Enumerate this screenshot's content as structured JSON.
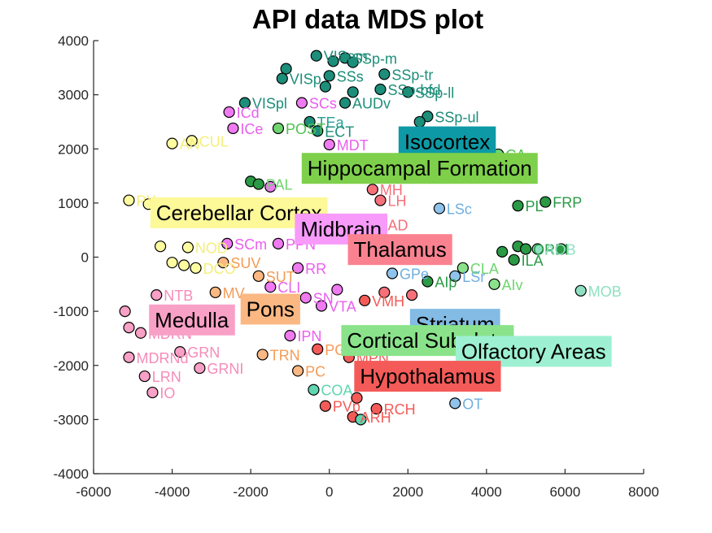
{
  "chart_data": {
    "type": "scatter",
    "title": "API data MDS plot",
    "xlabel": "",
    "ylabel": "",
    "xlim": [
      -6000,
      8000
    ],
    "ylim": [
      -4000,
      4000
    ],
    "xticks": [
      -6000,
      -4000,
      -2000,
      0,
      2000,
      4000,
      6000,
      8000
    ],
    "yticks": [
      -4000,
      -3000,
      -2000,
      -1000,
      0,
      1000,
      2000,
      3000,
      4000
    ],
    "grid": false,
    "groups": [
      {
        "name": "Isocortex",
        "color": "#0d9aa6",
        "lx": 3000,
        "ly": 2130
      },
      {
        "name": "Hippocampal Formation",
        "color": "#7ed04b",
        "lx": 2300,
        "ly": 1640
      },
      {
        "name": "Cerebellar Cortex",
        "color": "#fdf898",
        "lx": -2300,
        "ly": 820
      },
      {
        "name": "Midbrain",
        "color": "#f79afa",
        "lx": 300,
        "ly": 520
      },
      {
        "name": "Thalamus",
        "color": "#fa8290",
        "lx": 1800,
        "ly": 140
      },
      {
        "name": "Striatum",
        "color": "#83bbe4",
        "lx": 3200,
        "ly": -1240
      },
      {
        "name": "Medulla",
        "color": "#f9a0c6",
        "lx": -3500,
        "ly": -1160
      },
      {
        "name": "Pons",
        "color": "#fbb883",
        "lx": -1500,
        "ly": -960
      },
      {
        "name": "Cortical Subplate",
        "color": "#8ae38a",
        "lx": 2500,
        "ly": -1540
      },
      {
        "name": "Olfactory Areas",
        "color": "#9ef0d2",
        "lx": 5200,
        "ly": -1740
      },
      {
        "name": "Hypothalamus",
        "color": "#f45b58",
        "lx": 2500,
        "ly": -2200
      }
    ],
    "points": [
      {
        "x": -330,
        "y": 3720,
        "label": "VISam",
        "color": "#1d8e7a",
        "tcolor": "#1d8e7a"
      },
      {
        "x": 100,
        "y": 3620,
        "label": "",
        "color": "#1d8e7a",
        "tcolor": "#1d8e7a"
      },
      {
        "x": 400,
        "y": 3680,
        "label": "SSp-m",
        "color": "#1d8e7a",
        "tcolor": "#1d8e7a"
      },
      {
        "x": 600,
        "y": 3600,
        "label": "",
        "color": "#1d8e7a",
        "tcolor": "#1d8e7a"
      },
      {
        "x": -1100,
        "y": 3480,
        "label": "",
        "color": "#1d8e7a",
        "tcolor": "#1d8e7a"
      },
      {
        "x": -1200,
        "y": 3300,
        "label": "VISp",
        "color": "#1d8e7a",
        "tcolor": "#1d8e7a"
      },
      {
        "x": 0,
        "y": 3350,
        "label": "SSs",
        "color": "#1d8e7a",
        "tcolor": "#1d8e7a"
      },
      {
        "x": 1400,
        "y": 3380,
        "label": "SSp-tr",
        "color": "#1d8e7a",
        "tcolor": "#1d8e7a"
      },
      {
        "x": -100,
        "y": 3150,
        "label": "",
        "color": "#1d8e7a",
        "tcolor": "#1d8e7a"
      },
      {
        "x": 600,
        "y": 3050,
        "label": "",
        "color": "#1d8e7a",
        "tcolor": "#1d8e7a"
      },
      {
        "x": 1300,
        "y": 3100,
        "label": "SSp-bfd",
        "color": "#1d8e7a",
        "tcolor": "#1d8e7a"
      },
      {
        "x": 2000,
        "y": 3050,
        "label": "SSp-ll",
        "color": "#1d8e7a",
        "tcolor": "#1d8e7a"
      },
      {
        "x": -2150,
        "y": 2850,
        "label": "VISpl",
        "color": "#1d8e7a",
        "tcolor": "#1d8e7a"
      },
      {
        "x": 400,
        "y": 2850,
        "label": "AUDv",
        "color": "#1d8e7a",
        "tcolor": "#1d8e7a"
      },
      {
        "x": 2500,
        "y": 2600,
        "label": "SSp-ul",
        "color": "#1d8e7a",
        "tcolor": "#1d8e7a"
      },
      {
        "x": 2300,
        "y": 2500,
        "label": "",
        "color": "#1d8e7a",
        "tcolor": "#1d8e7a"
      },
      {
        "x": -2550,
        "y": 2680,
        "label": "ICd",
        "color": "#f07af2",
        "tcolor": "#ea5fee"
      },
      {
        "x": -2450,
        "y": 2380,
        "label": "ICe",
        "color": "#f07af2",
        "tcolor": "#ea5fee"
      },
      {
        "x": -700,
        "y": 2850,
        "label": "SCs",
        "color": "#f07af2",
        "tcolor": "#ea5fee"
      },
      {
        "x": -500,
        "y": 2500,
        "label": "TEa",
        "color": "#1d8e7a",
        "tcolor": "#25a095"
      },
      {
        "x": -1300,
        "y": 2380,
        "label": "POST",
        "color": "#6ed56e",
        "tcolor": "#4ec24e"
      },
      {
        "x": -300,
        "y": 2330,
        "label": "ECT",
        "color": "#1d8e7a",
        "tcolor": "#1d8e7a"
      },
      {
        "x": -4000,
        "y": 2100,
        "label": "AN",
        "color": "#fffca0",
        "tcolor": "#f5ee7a"
      },
      {
        "x": -3500,
        "y": 2150,
        "label": "CUL",
        "color": "#fffca0",
        "tcolor": "#f5ee7a"
      },
      {
        "x": 0,
        "y": 2080,
        "label": "MDT",
        "color": "#f07af2",
        "tcolor": "#ea5fee"
      },
      {
        "x": 4300,
        "y": 1900,
        "label": "CA",
        "color": "#6ed56e",
        "tcolor": "#4ec24e"
      },
      {
        "x": -2000,
        "y": 1400,
        "label": "",
        "color": "#2a9a45",
        "tcolor": "#2a9a45"
      },
      {
        "x": -1800,
        "y": 1350,
        "label": "PAL",
        "color": "#2a9a45",
        "tcolor": "#6ed56e"
      },
      {
        "x": -1500,
        "y": 1300,
        "label": "",
        "color": "#f07af2",
        "tcolor": "#ea5fee"
      },
      {
        "x": 1100,
        "y": 1250,
        "label": "MH",
        "color": "#f6707a",
        "tcolor": "#f6707a"
      },
      {
        "x": 1300,
        "y": 1050,
        "label": "LH",
        "color": "#f6707a",
        "tcolor": "#f6707a"
      },
      {
        "x": 2800,
        "y": 900,
        "label": "LSc",
        "color": "#8fc3ec",
        "tcolor": "#6eaedf"
      },
      {
        "x": 4800,
        "y": 950,
        "label": "PL",
        "color": "#2a9a45",
        "tcolor": "#2a9a45"
      },
      {
        "x": 5500,
        "y": 1020,
        "label": "FRP",
        "color": "#2a9a45",
        "tcolor": "#2a9a45"
      },
      {
        "x": -5100,
        "y": 1050,
        "label": "PY",
        "color": "#fffca0",
        "tcolor": "#f5ee7a"
      },
      {
        "x": -4600,
        "y": 980,
        "label": "",
        "color": "#fffca0",
        "tcolor": "#f5ee7a"
      },
      {
        "x": 1300,
        "y": 600,
        "label": "AD",
        "color": "#f6707a",
        "tcolor": "#f6707a"
      },
      {
        "x": -4300,
        "y": 200,
        "label": "",
        "color": "#fffca0",
        "tcolor": "#f5ee7a"
      },
      {
        "x": -3600,
        "y": 180,
        "label": "NOD",
        "color": "#fffca0",
        "tcolor": "#f5ee7a"
      },
      {
        "x": -2600,
        "y": 250,
        "label": "SCm",
        "color": "#f07af2",
        "tcolor": "#ea5fee"
      },
      {
        "x": -1300,
        "y": 250,
        "label": "PPN",
        "color": "#f07af2",
        "tcolor": "#ea5fee"
      },
      {
        "x": 4400,
        "y": 100,
        "label": "",
        "color": "#2a9a45",
        "tcolor": "#2a9a45"
      },
      {
        "x": 4800,
        "y": 200,
        "label": "",
        "color": "#2a9a45",
        "tcolor": "#2a9a45"
      },
      {
        "x": 5000,
        "y": 150,
        "label": "ORBl",
        "color": "#2a9a45",
        "tcolor": "#2a9a45"
      },
      {
        "x": 5300,
        "y": 150,
        "label": "AOB",
        "color": "#8fe0c2",
        "tcolor": "#8fe0c2"
      },
      {
        "x": 5900,
        "y": 150,
        "label": "",
        "color": "#2a9a45",
        "tcolor": "#2a9a45"
      },
      {
        "x": 4700,
        "y": -50,
        "label": "ILA",
        "color": "#2a9a45",
        "tcolor": "#2a9a45"
      },
      {
        "x": -4000,
        "y": -100,
        "label": "",
        "color": "#fffca0",
        "tcolor": "#f5ee7a"
      },
      {
        "x": -3700,
        "y": -150,
        "label": "",
        "color": "#fffca0",
        "tcolor": "#f5ee7a"
      },
      {
        "x": -3400,
        "y": -200,
        "label": "DCO",
        "color": "#fffca0",
        "tcolor": "#f5ee7a"
      },
      {
        "x": -2700,
        "y": -100,
        "label": "SUV",
        "color": "#fbb883",
        "tcolor": "#f59b55"
      },
      {
        "x": -1800,
        "y": -350,
        "label": "SUT",
        "color": "#fbb883",
        "tcolor": "#f59b55"
      },
      {
        "x": -800,
        "y": -200,
        "label": "RR",
        "color": "#f07af2",
        "tcolor": "#ea5fee"
      },
      {
        "x": 1600,
        "y": -300,
        "label": "GPe",
        "color": "#8fc3ec",
        "tcolor": "#6eaedf"
      },
      {
        "x": 3400,
        "y": -200,
        "label": "CLA",
        "color": "#8ae38a",
        "tcolor": "#6ed56e"
      },
      {
        "x": 3200,
        "y": -350,
        "label": "LSr",
        "color": "#8fc3ec",
        "tcolor": "#6eaedf"
      },
      {
        "x": 2500,
        "y": -450,
        "label": "AIp",
        "color": "#2a9a45",
        "tcolor": "#2a9a45"
      },
      {
        "x": 4200,
        "y": -500,
        "label": "AIv",
        "color": "#8ae38a",
        "tcolor": "#6ed56e"
      },
      {
        "x": 6400,
        "y": -620,
        "label": "MOB",
        "color": "#8fe0c2",
        "tcolor": "#8fe0c2"
      },
      {
        "x": -4400,
        "y": -700,
        "label": "NTB",
        "color": "#f9a0c6",
        "tcolor": "#f58cb8"
      },
      {
        "x": -2900,
        "y": -650,
        "label": "MV",
        "color": "#fbb883",
        "tcolor": "#f59b55"
      },
      {
        "x": -1500,
        "y": -550,
        "label": "CLI",
        "color": "#f07af2",
        "tcolor": "#ea5fee"
      },
      {
        "x": -600,
        "y": -750,
        "label": "SN",
        "color": "#f07af2",
        "tcolor": "#ea5fee"
      },
      {
        "x": 900,
        "y": -800,
        "label": "VMH",
        "color": "#f45b58",
        "tcolor": "#f45b58"
      },
      {
        "x": -5200,
        "y": -1000,
        "label": "",
        "color": "#f9a0c6",
        "tcolor": "#f58cb8"
      },
      {
        "x": -5100,
        "y": -1300,
        "label": "",
        "color": "#f9a0c6",
        "tcolor": "#f58cb8"
      },
      {
        "x": -4800,
        "y": -1400,
        "label": "MDRN",
        "color": "#f9a0c6",
        "tcolor": "#f58cb8"
      },
      {
        "x": -1700,
        "y": -1800,
        "label": "TRN",
        "color": "#fbb883",
        "tcolor": "#f59b55"
      },
      {
        "x": -1000,
        "y": -1450,
        "label": "IPN",
        "color": "#f07af2",
        "tcolor": "#ea5fee"
      },
      {
        "x": -5100,
        "y": -1850,
        "label": "MDRNd",
        "color": "#f9a0c6",
        "tcolor": "#f58cb8"
      },
      {
        "x": -3800,
        "y": -1750,
        "label": "GRN",
        "color": "#f9a0c6",
        "tcolor": "#f58cb8"
      },
      {
        "x": -4700,
        "y": -2200,
        "label": "LRN",
        "color": "#f9a0c6",
        "tcolor": "#f58cb8"
      },
      {
        "x": -3300,
        "y": -2050,
        "label": "GRNI",
        "color": "#f9a0c6",
        "tcolor": "#f58cb8"
      },
      {
        "x": -300,
        "y": -1700,
        "label": "PG",
        "color": "#f45b58",
        "tcolor": "#f59b55"
      },
      {
        "x": -800,
        "y": -2100,
        "label": "PC",
        "color": "#fbb883",
        "tcolor": "#f59b55"
      },
      {
        "x": 500,
        "y": -1850,
        "label": "MPN",
        "color": "#f45b58",
        "tcolor": "#f45b58"
      },
      {
        "x": -4500,
        "y": -2500,
        "label": "IO",
        "color": "#f9a0c6",
        "tcolor": "#f58cb8"
      },
      {
        "x": -400,
        "y": -2450,
        "label": "COA",
        "color": "#5fd6b0",
        "tcolor": "#5fd6b0"
      },
      {
        "x": 700,
        "y": -2600,
        "label": "",
        "color": "#f45b58",
        "tcolor": "#f45b58"
      },
      {
        "x": -100,
        "y": -2750,
        "label": "PVp",
        "color": "#f45b58",
        "tcolor": "#f45b58"
      },
      {
        "x": 600,
        "y": -2950,
        "label": "ARH",
        "color": "#f45b58",
        "tcolor": "#f45b58"
      },
      {
        "x": 800,
        "y": -3000,
        "label": "",
        "color": "#5fd6b0",
        "tcolor": "#5fd6b0"
      },
      {
        "x": 1200,
        "y": -2800,
        "label": "RCH",
        "color": "#f45b58",
        "tcolor": "#f45b58"
      },
      {
        "x": 3200,
        "y": -2700,
        "label": "OT",
        "color": "#8fc3ec",
        "tcolor": "#6eaedf"
      },
      {
        "x": 200,
        "y": -600,
        "label": "",
        "color": "#f07af2",
        "tcolor": "#ea5fee"
      },
      {
        "x": -200,
        "y": -900,
        "label": "VTA",
        "color": "#f07af2",
        "tcolor": "#ea5fee"
      },
      {
        "x": 1400,
        "y": -650,
        "label": "",
        "color": "#f6707a",
        "tcolor": "#f6707a"
      },
      {
        "x": 2100,
        "y": -700,
        "label": "",
        "color": "#f6707a",
        "tcolor": "#f6707a"
      }
    ]
  }
}
